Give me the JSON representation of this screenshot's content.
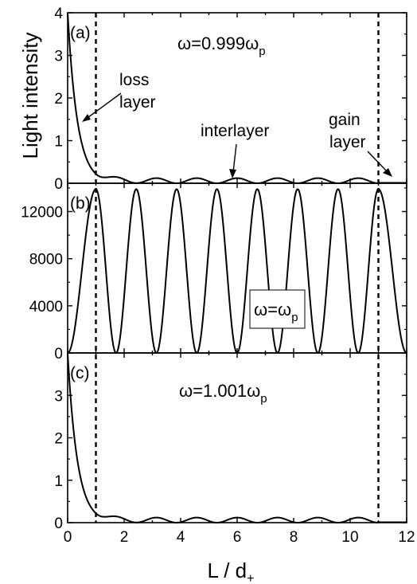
{
  "chart_data": {
    "type": "line",
    "xlabel": "L / d",
    "xlabel_sub": "+",
    "ylabel": "Light intensity",
    "xlim": [
      0,
      12
    ],
    "xticks": [
      "0",
      "2",
      "4",
      "6",
      "8",
      "10",
      "12"
    ],
    "vlines_x": [
      1,
      11
    ],
    "panels": [
      {
        "label": "(a)",
        "omega_main": "ω=0.999ω",
        "omega_sub": "p",
        "ylim": [
          0,
          4
        ],
        "yticks": [
          "0",
          "1",
          "2",
          "3",
          "4"
        ],
        "ytick_values": [
          0,
          1,
          2,
          3,
          4
        ],
        "loss_peak": 4.0,
        "loss_decay": 2.9,
        "osc_amp": 0.12,
        "annotations": [
          "loss",
          "layer",
          "interlayer",
          "gain",
          "layer"
        ]
      },
      {
        "label": "(b)",
        "omega_main": "ω=ω",
        "omega_sub": "p",
        "ylim": [
          0,
          14400
        ],
        "yticks": [
          "0",
          "4000",
          "8000",
          "12000"
        ],
        "ytick_values": [
          0,
          4000,
          8000,
          12000
        ],
        "peak": 13900,
        "peaks_x": [
          1.0,
          2.43,
          3.86,
          5.29,
          6.71,
          8.14,
          9.57,
          11.0
        ],
        "zeros_x": [
          0,
          1.71,
          3.14,
          4.57,
          6.0,
          7.43,
          8.86,
          10.29,
          12
        ]
      },
      {
        "label": "(c)",
        "omega_main": "ω=1.001ω",
        "omega_sub": "p",
        "ylim": [
          0,
          4
        ],
        "yticks": [
          "0",
          "1",
          "2",
          "3"
        ],
        "ytick_values": [
          0,
          1,
          2,
          3
        ],
        "loss_peak": 4.0,
        "loss_decay": 2.9,
        "osc_amp": 0.12
      }
    ]
  }
}
